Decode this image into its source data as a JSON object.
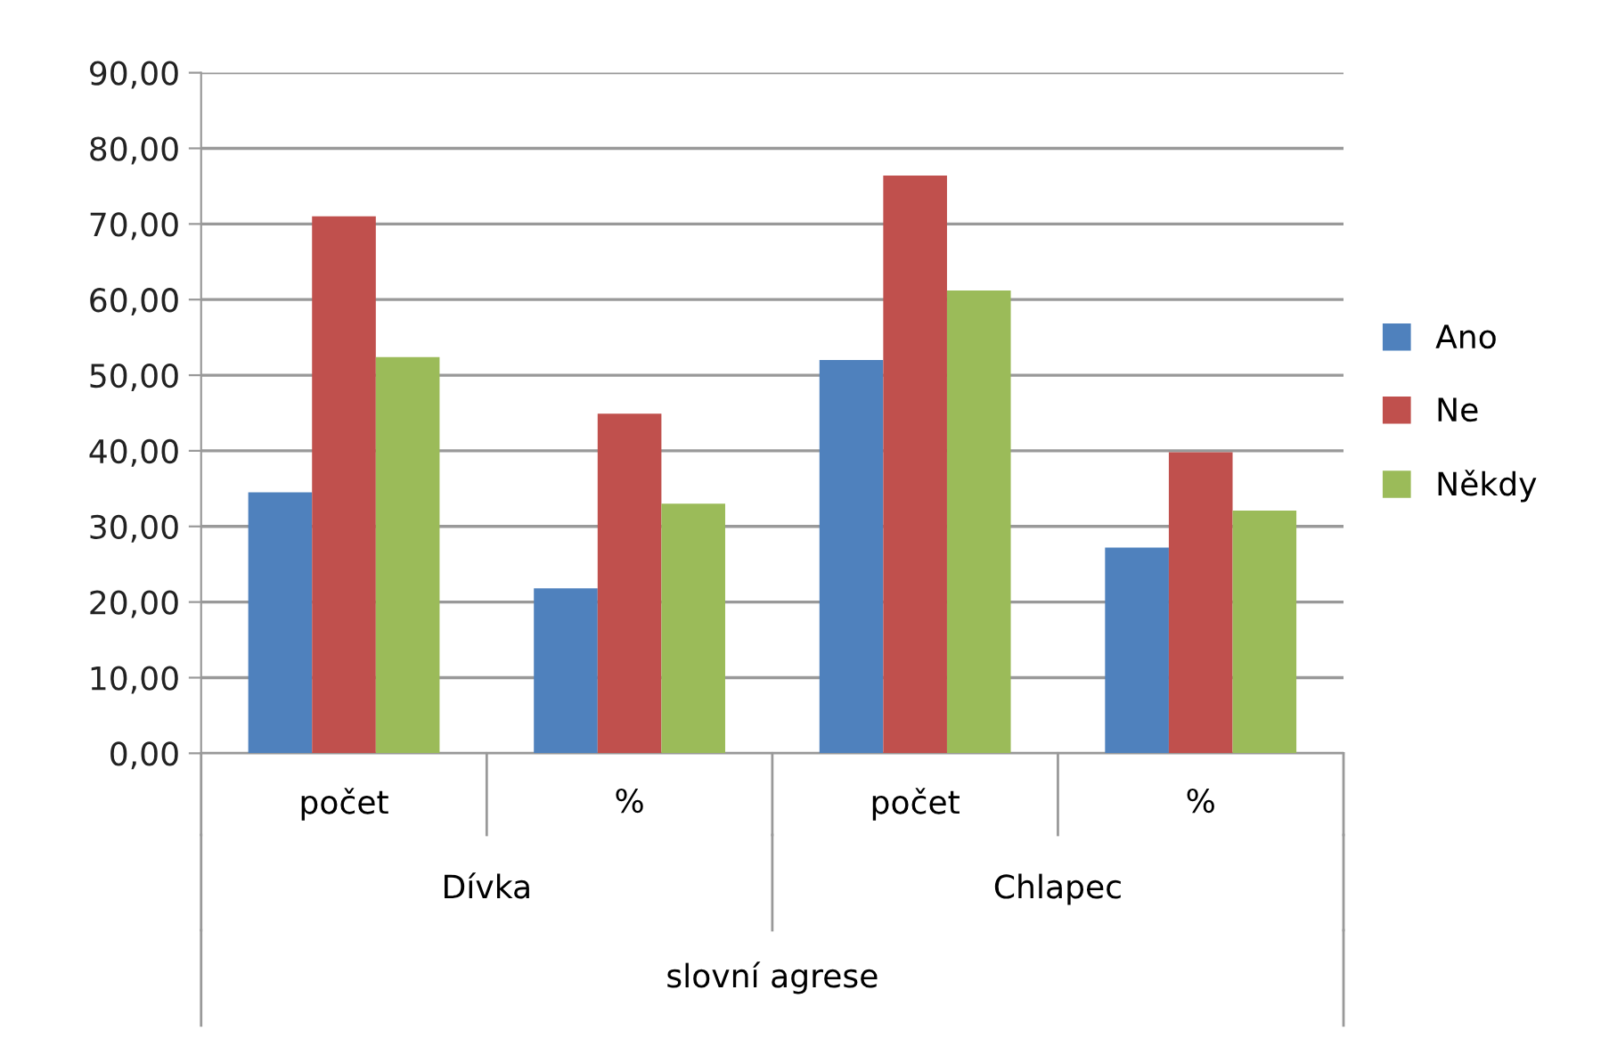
{
  "chart_data": {
    "type": "bar",
    "categories": [
      "počet",
      "%",
      "počet",
      "%"
    ],
    "series": [
      {
        "name": "Ano",
        "color": "#4f81bd",
        "values": [
          34.5,
          21.8,
          52.0,
          27.2
        ]
      },
      {
        "name": "Ne",
        "color": "#c0504d",
        "values": [
          71.0,
          44.9,
          76.4,
          39.8
        ]
      },
      {
        "name": "Někdy",
        "color": "#9bbb59",
        "values": [
          52.4,
          33.0,
          61.2,
          32.1
        ]
      }
    ],
    "annotations": [
      "Dívka",
      "Chlapec",
      "slovní agrese"
    ],
    "ylim": [
      0,
      90
    ],
    "yticks": [
      {
        "value": 0,
        "label": "0,00"
      },
      {
        "value": 10,
        "label": "10,00"
      },
      {
        "value": 20,
        "label": "20,00"
      },
      {
        "value": 30,
        "label": "30,00"
      },
      {
        "value": 40,
        "label": "40,00"
      },
      {
        "value": 50,
        "label": "50,00"
      },
      {
        "value": 60,
        "label": "60,00"
      },
      {
        "value": 70,
        "label": "70,00"
      },
      {
        "value": 80,
        "label": "80,00"
      },
      {
        "value": 90,
        "label": "90,00"
      }
    ],
    "grid": "y",
    "legend": "right"
  }
}
